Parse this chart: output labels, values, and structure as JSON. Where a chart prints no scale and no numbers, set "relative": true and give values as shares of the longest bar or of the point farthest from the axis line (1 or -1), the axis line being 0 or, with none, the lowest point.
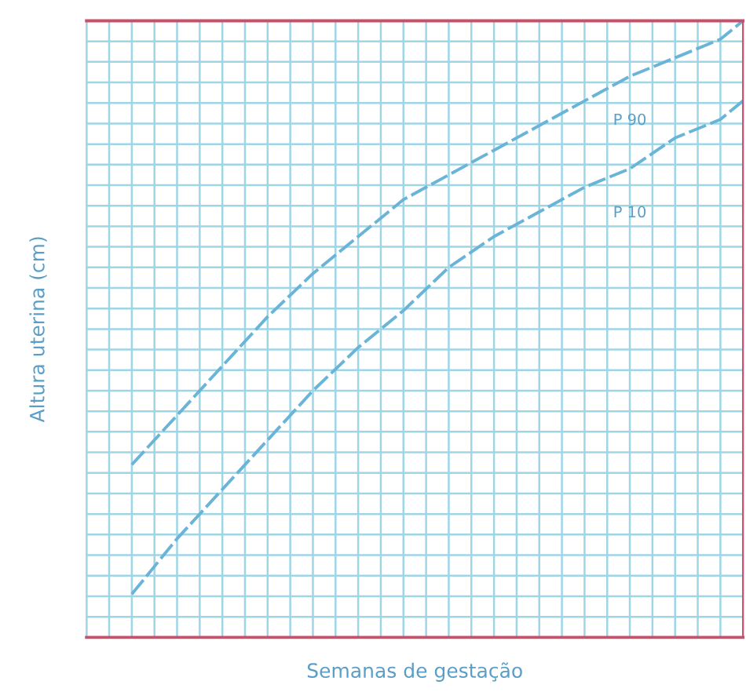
{
  "chart_data": {
    "type": "line",
    "relative": true,
    "xlabel": "Semanas de gestação",
    "ylabel": "Altura uterina (cm)",
    "categories": [
      null,
      null,
      null,
      null,
      null,
      null,
      null,
      null,
      null,
      null,
      null,
      null,
      null,
      null,
      null,
      null,
      null,
      null,
      null,
      null,
      null,
      null,
      null,
      null,
      null,
      null,
      null,
      null,
      null,
      null
    ],
    "series": [
      {
        "name": "P 90",
        "color": "#6ab4d8",
        "values": [
          null,
          null,
          0.28,
          null,
          0.36,
          null,
          0.44,
          null,
          0.52,
          null,
          0.59,
          null,
          0.65,
          null,
          0.71,
          null,
          0.75,
          null,
          0.79,
          null,
          0.83,
          null,
          0.87,
          null,
          0.91,
          null,
          0.94,
          null,
          0.97,
          1
        ]
      },
      {
        "name": "P 10",
        "color": "#6ab4d8",
        "values": [
          null,
          null,
          0.07,
          null,
          0.16,
          null,
          0.24,
          null,
          0.32,
          null,
          0.4,
          null,
          0.47,
          null,
          0.53,
          null,
          0.6,
          null,
          0.65,
          null,
          0.69,
          null,
          0.73,
          null,
          0.76,
          null,
          0.81,
          null,
          0.84,
          0.87
        ]
      }
    ],
    "grid": true,
    "line_style": "dashed",
    "marker": "none",
    "legend": false
  }
}
